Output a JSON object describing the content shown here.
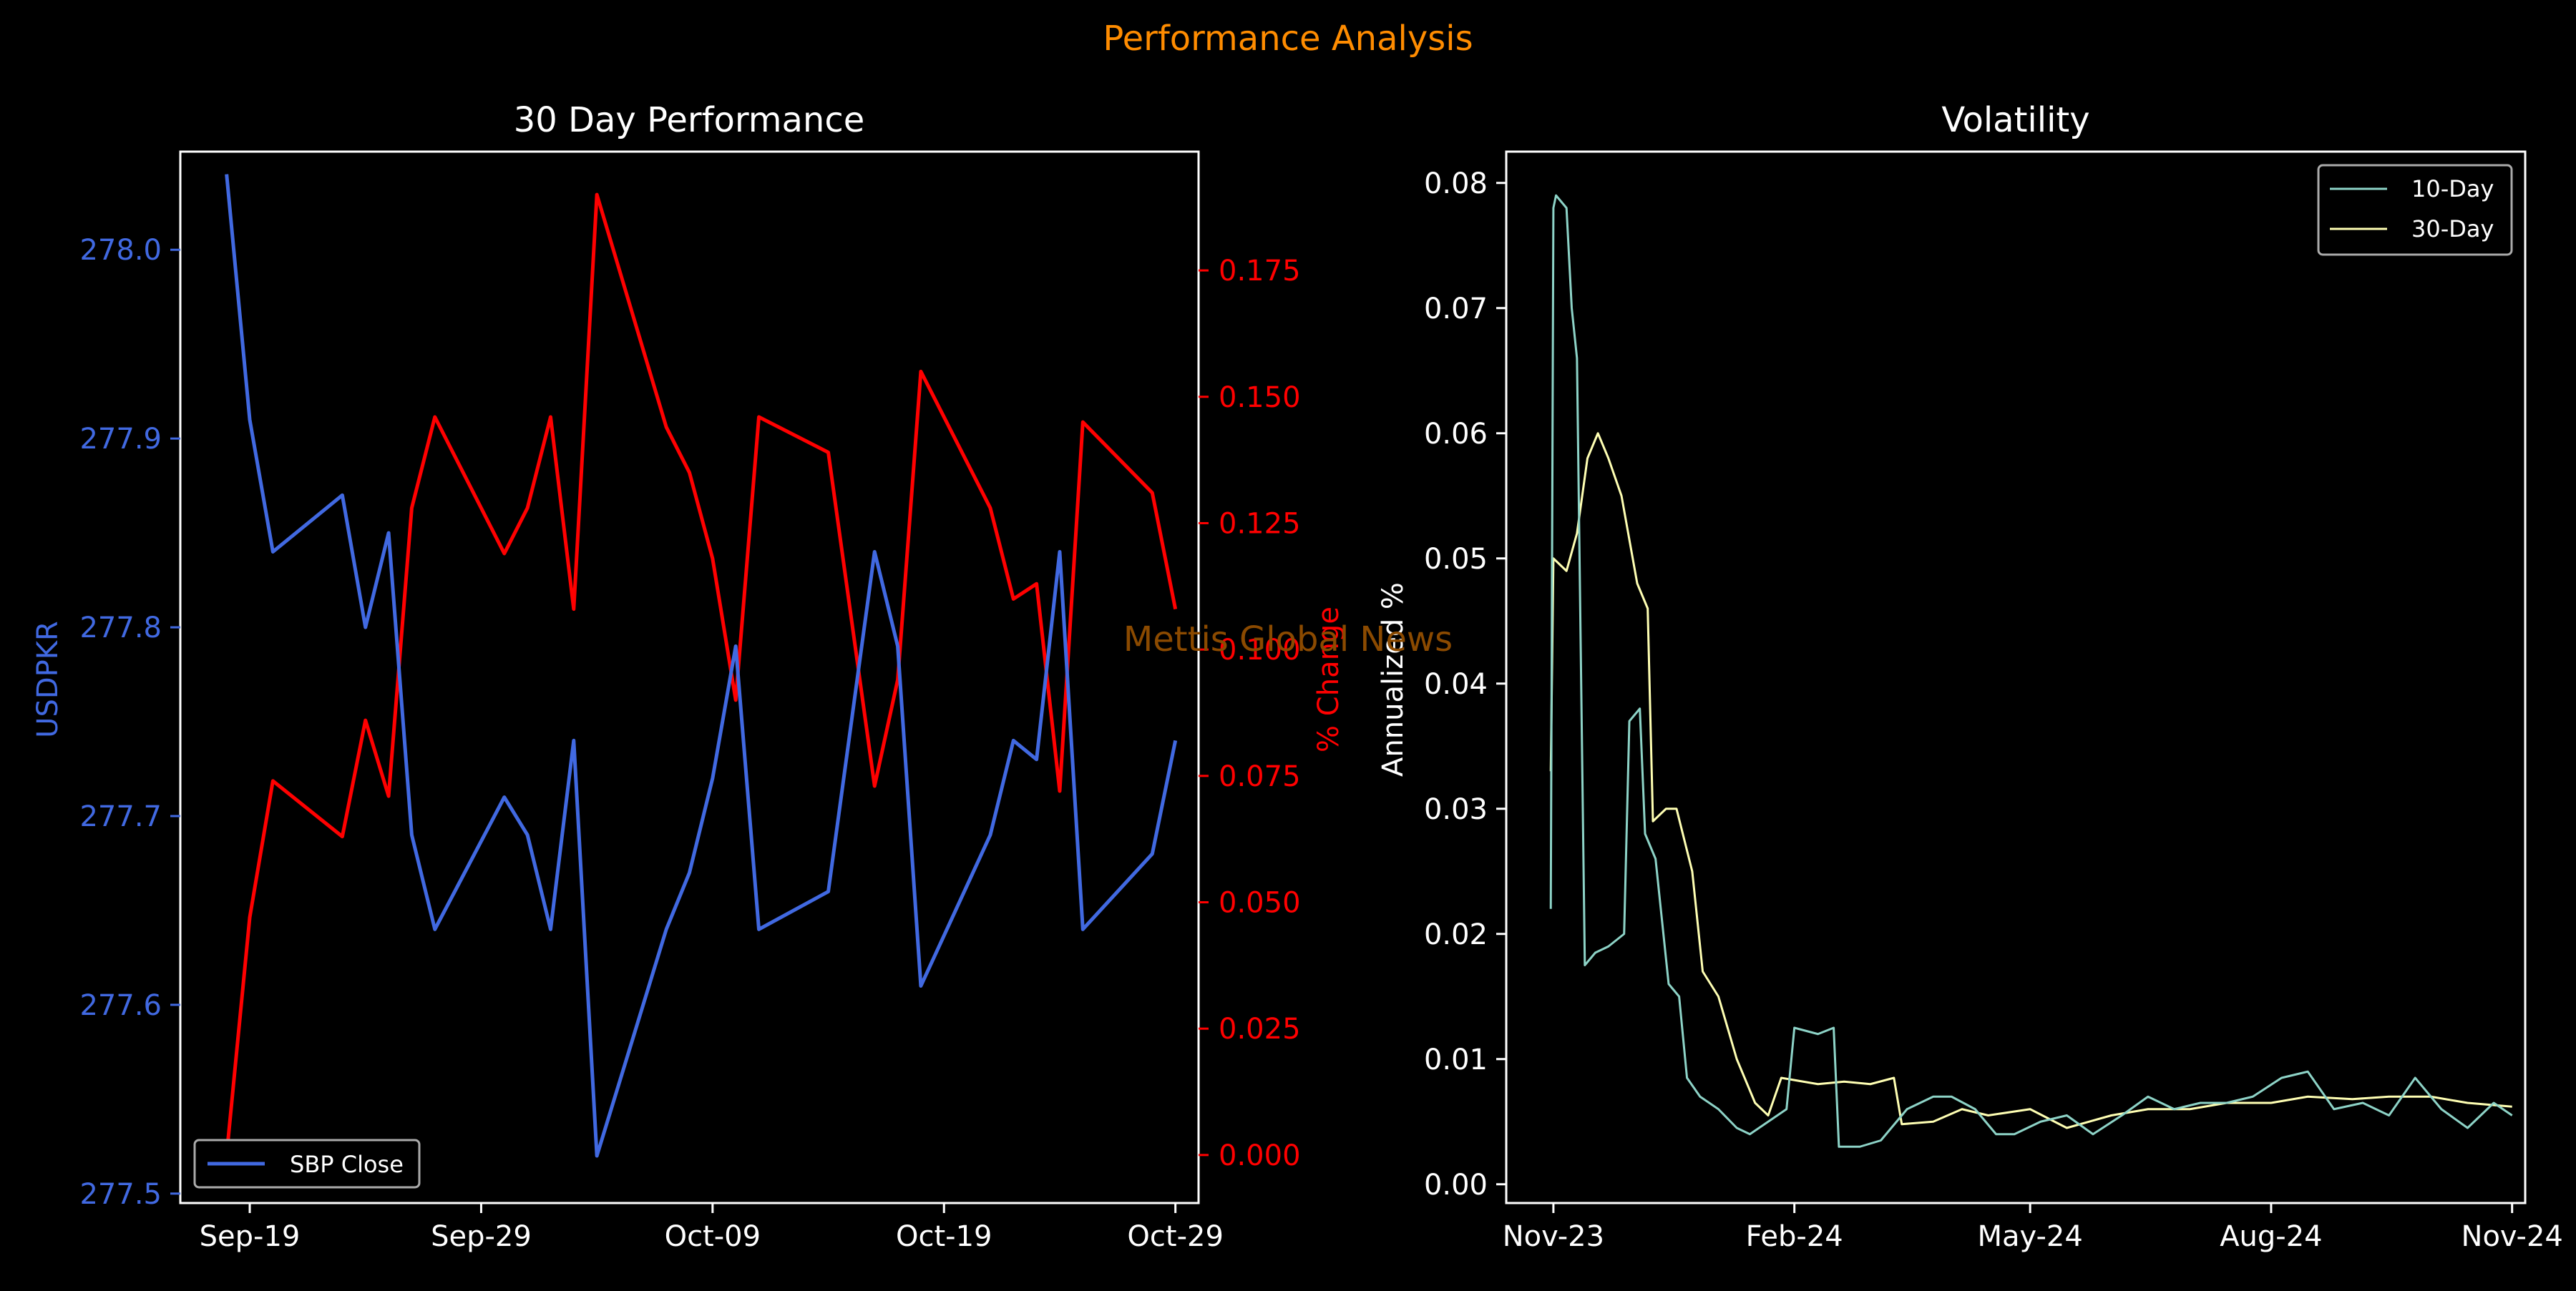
{
  "figure": {
    "suptitle": "Performance Analysis",
    "watermark": "Mettis Global News",
    "colors": {
      "background": "#000000",
      "suptitle": "#ff8c00",
      "watermark": "#8b4a00",
      "close_line": "#4169e1",
      "pct_line": "#ff0000",
      "vol10": "#8dd3c7",
      "vol30": "#ffffb3",
      "axis": "#ffffff"
    }
  },
  "chart_data": [
    {
      "type": "line",
      "title": "30 Day Performance",
      "x_type": "date",
      "x_ticks": [
        "Sep-19",
        "Sep-29",
        "Oct-09",
        "Oct-19",
        "Oct-29"
      ],
      "x": [
        "2024-09-18",
        "2024-09-19",
        "2024-09-20",
        "2024-09-23",
        "2024-09-24",
        "2024-09-25",
        "2024-09-26",
        "2024-09-27",
        "2024-09-30",
        "2024-10-01",
        "2024-10-02",
        "2024-10-03",
        "2024-10-04",
        "2024-10-07",
        "2024-10-08",
        "2024-10-09",
        "2024-10-10",
        "2024-10-11",
        "2024-10-14",
        "2024-10-16",
        "2024-10-17",
        "2024-10-18",
        "2024-10-21",
        "2024-10-22",
        "2024-10-23",
        "2024-10-24",
        "2024-10-25",
        "2024-10-28",
        "2024-10-29"
      ],
      "xlim": [
        "2024-09-16",
        "2024-10-30"
      ],
      "left_axis": {
        "label": "USDPKR",
        "ylim": [
          277.495,
          278.052
        ],
        "ticks": [
          "277.5",
          "277.6",
          "277.7",
          "277.8",
          "277.9",
          "278.0"
        ],
        "series": [
          {
            "name": "SBP Close",
            "values": [
              278.04,
              277.91,
              277.84,
              277.87,
              277.8,
              277.85,
              277.69,
              277.64,
              277.71,
              277.69,
              277.64,
              277.74,
              277.52,
              277.64,
              277.67,
              277.72,
              277.79,
              277.64,
              277.66,
              277.84,
              277.79,
              277.61,
              277.69,
              277.74,
              277.73,
              277.84,
              277.64,
              277.68,
              277.74
            ]
          }
        ]
      },
      "right_axis": {
        "label": "% Change",
        "ylim": [
          -0.0095,
          0.1985
        ],
        "ticks": [
          "0.000",
          "0.025",
          "0.050",
          "0.075",
          "0.100",
          "0.125",
          "0.150",
          "0.175"
        ],
        "series": [
          {
            "values": [
              0.0,
              0.047,
              0.074,
              0.063,
              0.086,
              0.071,
              0.128,
              0.146,
              0.119,
              0.128,
              0.146,
              0.108,
              0.19,
              0.144,
              0.135,
              0.118,
              0.09,
              0.146,
              0.139,
              0.073,
              0.094,
              0.155,
              0.128,
              0.11,
              0.113,
              0.072,
              0.145,
              0.131,
              0.108
            ]
          }
        ]
      },
      "legend": {
        "position": "lower-left",
        "entries": [
          "SBP Close"
        ]
      }
    },
    {
      "type": "line",
      "title": "Volatility",
      "x_type": "date",
      "x_ticks": [
        "Nov-23",
        "Feb-24",
        "May-24",
        "Aug-24",
        "Nov-24"
      ],
      "xlim": [
        "2023-10-14",
        "2024-11-06"
      ],
      "ylabel": "Annualized %",
      "ylim": [
        -0.0015,
        0.0825
      ],
      "y_ticks": [
        "0.00",
        "0.01",
        "0.02",
        "0.03",
        "0.04",
        "0.05",
        "0.06",
        "0.07",
        "0.08"
      ],
      "legend": {
        "position": "top-right",
        "entries": [
          "10-Day",
          "30-Day"
        ]
      },
      "series": [
        {
          "name": "10-Day",
          "points": [
            [
              "2023-10-31",
              0.022
            ],
            [
              "2023-11-01",
              0.078
            ],
            [
              "2023-11-02",
              0.079
            ],
            [
              "2023-11-06",
              0.078
            ],
            [
              "2023-11-08",
              0.07
            ],
            [
              "2023-11-10",
              0.066
            ],
            [
              "2023-11-13",
              0.0175
            ],
            [
              "2023-11-17",
              0.0185
            ],
            [
              "2023-11-22",
              0.019
            ],
            [
              "2023-11-28",
              0.02
            ],
            [
              "2023-11-30",
              0.037
            ],
            [
              "2023-12-04",
              0.038
            ],
            [
              "2023-12-06",
              0.028
            ],
            [
              "2023-12-10",
              0.026
            ],
            [
              "2023-12-15",
              0.016
            ],
            [
              "2023-12-19",
              0.015
            ],
            [
              "2023-12-22",
              0.0085
            ],
            [
              "2023-12-27",
              0.007
            ],
            [
              "2024-01-03",
              0.006
            ],
            [
              "2024-01-10",
              0.0045
            ],
            [
              "2024-01-15",
              0.004
            ],
            [
              "2024-01-22",
              0.005
            ],
            [
              "2024-01-29",
              0.006
            ],
            [
              "2024-02-01",
              0.0125
            ],
            [
              "2024-02-10",
              0.012
            ],
            [
              "2024-02-16",
              0.0125
            ],
            [
              "2024-02-18",
              0.003
            ],
            [
              "2024-02-26",
              0.003
            ],
            [
              "2024-03-05",
              0.0035
            ],
            [
              "2024-03-15",
              0.006
            ],
            [
              "2024-03-25",
              0.007
            ],
            [
              "2024-04-01",
              0.007
            ],
            [
              "2024-04-10",
              0.006
            ],
            [
              "2024-04-18",
              0.004
            ],
            [
              "2024-04-25",
              0.004
            ],
            [
              "2024-05-05",
              0.005
            ],
            [
              "2024-05-15",
              0.0055
            ],
            [
              "2024-05-25",
              0.004
            ],
            [
              "2024-06-05",
              0.0055
            ],
            [
              "2024-06-15",
              0.007
            ],
            [
              "2024-06-25",
              0.006
            ],
            [
              "2024-07-05",
              0.0065
            ],
            [
              "2024-07-15",
              0.0065
            ],
            [
              "2024-07-25",
              0.007
            ],
            [
              "2024-08-05",
              0.0085
            ],
            [
              "2024-08-15",
              0.009
            ],
            [
              "2024-08-25",
              0.006
            ],
            [
              "2024-09-05",
              0.0065
            ],
            [
              "2024-09-15",
              0.0055
            ],
            [
              "2024-09-25",
              0.0085
            ],
            [
              "2024-10-05",
              0.006
            ],
            [
              "2024-10-15",
              0.0045
            ],
            [
              "2024-10-25",
              0.0065
            ],
            [
              "2024-11-01",
              0.0055
            ]
          ]
        },
        {
          "name": "30-Day",
          "points": [
            [
              "2023-10-31",
              0.033
            ],
            [
              "2023-11-01",
              0.05
            ],
            [
              "2023-11-06",
              0.049
            ],
            [
              "2023-11-10",
              0.052
            ],
            [
              "2023-11-14",
              0.058
            ],
            [
              "2023-11-18",
              0.06
            ],
            [
              "2023-11-22",
              0.058
            ],
            [
              "2023-11-27",
              0.055
            ],
            [
              "2023-12-03",
              0.048
            ],
            [
              "2023-12-07",
              0.046
            ],
            [
              "2023-12-09",
              0.029
            ],
            [
              "2023-12-14",
              0.03
            ],
            [
              "2023-12-18",
              0.03
            ],
            [
              "2023-12-24",
              0.025
            ],
            [
              "2023-12-28",
              0.017
            ],
            [
              "2024-01-03",
              0.015
            ],
            [
              "2024-01-10",
              0.01
            ],
            [
              "2024-01-17",
              0.0065
            ],
            [
              "2024-01-22",
              0.0055
            ],
            [
              "2024-01-27",
              0.0085
            ],
            [
              "2024-02-10",
              0.008
            ],
            [
              "2024-02-20",
              0.0082
            ],
            [
              "2024-03-01",
              0.008
            ],
            [
              "2024-03-10",
              0.0085
            ],
            [
              "2024-03-13",
              0.0048
            ],
            [
              "2024-03-25",
              0.005
            ],
            [
              "2024-04-05",
              0.006
            ],
            [
              "2024-04-15",
              0.0055
            ],
            [
              "2024-05-01",
              0.006
            ],
            [
              "2024-05-15",
              0.0045
            ],
            [
              "2024-06-01",
              0.0055
            ],
            [
              "2024-06-15",
              0.006
            ],
            [
              "2024-07-01",
              0.006
            ],
            [
              "2024-07-15",
              0.0065
            ],
            [
              "2024-08-01",
              0.0065
            ],
            [
              "2024-08-15",
              0.007
            ],
            [
              "2024-09-01",
              0.0068
            ],
            [
              "2024-09-15",
              0.007
            ],
            [
              "2024-10-01",
              0.007
            ],
            [
              "2024-10-15",
              0.0065
            ],
            [
              "2024-11-01",
              0.0062
            ]
          ]
        }
      ]
    }
  ]
}
